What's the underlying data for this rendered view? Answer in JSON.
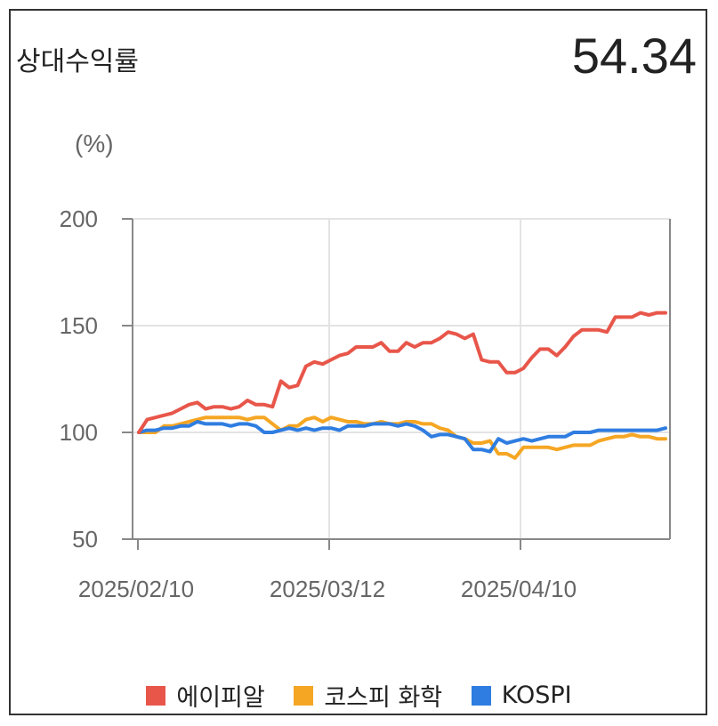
{
  "header": {
    "title": "상대수익률",
    "value": "54.34"
  },
  "colors": {
    "series_1": "#e8564a",
    "series_2": "#f5a623",
    "series_3": "#2f7de1",
    "grid": "#e3e3e3",
    "axis": "#888888"
  },
  "chart_data": {
    "type": "line",
    "ylabel": "(%)",
    "ylim": [
      50,
      200
    ],
    "yticks": [
      "200",
      "150",
      "100",
      "50"
    ],
    "xticks": [
      "2025/02/10",
      "2025/03/12",
      "2025/04/10"
    ],
    "grid": true,
    "legend_position": "bottom",
    "series": [
      {
        "name": "에이피알",
        "values": [
          100,
          106,
          107,
          108,
          109,
          111,
          113,
          114,
          111,
          112,
          112,
          111,
          112,
          115,
          113,
          113,
          112,
          124,
          121,
          122,
          131,
          133,
          132,
          134,
          136,
          137,
          140,
          140,
          140,
          142,
          138,
          138,
          142,
          140,
          142,
          142,
          144,
          147,
          146,
          144,
          146,
          134,
          133,
          133,
          128,
          128,
          130,
          135,
          139,
          139,
          136,
          140,
          145,
          148,
          148,
          148,
          147,
          154,
          154,
          154,
          156,
          155,
          156,
          156
        ]
      },
      {
        "name": "코스피 화학",
        "values": [
          100,
          100,
          100,
          103,
          103,
          104,
          105,
          106,
          107,
          107,
          107,
          107,
          107,
          106,
          107,
          107,
          104,
          101,
          103,
          103,
          106,
          107,
          105,
          107,
          106,
          105,
          105,
          104,
          104,
          105,
          104,
          104,
          105,
          105,
          104,
          104,
          102,
          101,
          98,
          97,
          95,
          95,
          96,
          90,
          90,
          88,
          93,
          93,
          93,
          93,
          92,
          93,
          94,
          94,
          94,
          96,
          97,
          98,
          98,
          99,
          98,
          98,
          97,
          97
        ]
      },
      {
        "name": "KOSPI",
        "values": [
          100,
          101,
          101,
          102,
          102,
          103,
          103,
          105,
          104,
          104,
          104,
          103,
          104,
          104,
          103,
          100,
          100,
          101,
          102,
          101,
          102,
          101,
          102,
          102,
          101,
          103,
          103,
          103,
          104,
          104,
          104,
          103,
          104,
          103,
          101,
          98,
          99,
          99,
          98,
          97,
          92,
          92,
          91,
          97,
          95,
          96,
          97,
          96,
          97,
          98,
          98,
          98,
          100,
          100,
          100,
          101,
          101,
          101,
          101,
          101,
          101,
          101,
          101,
          102
        ]
      }
    ]
  }
}
